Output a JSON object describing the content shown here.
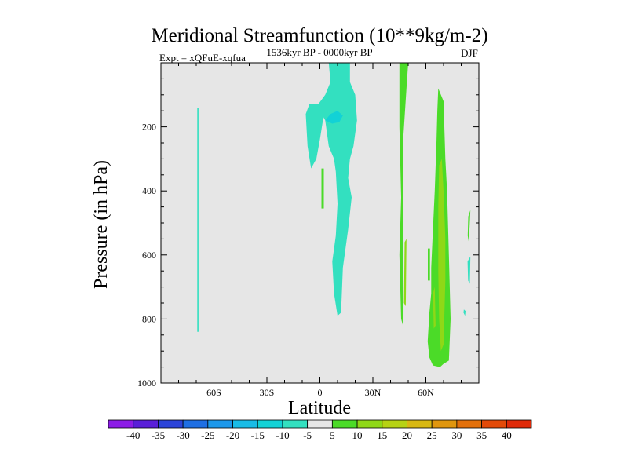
{
  "chart_data": {
    "type": "heatmap",
    "title": "Meridional Streamfunction (10**9kg/m-2)",
    "subtitle_left": "Expt = xQFuE-xqfua",
    "subtitle_center": "1536kyr BP - 0000kyr BP",
    "subtitle_right": "DJF",
    "xlabel": "Latitude",
    "ylabel": "Pressure (in hPa)",
    "xlim": [
      -90,
      90
    ],
    "ylim": [
      1000,
      0
    ],
    "x_ticks": [
      {
        "value": -60,
        "label": "60S"
      },
      {
        "value": -30,
        "label": "30S"
      },
      {
        "value": 0,
        "label": "0"
      },
      {
        "value": 30,
        "label": "30N"
      },
      {
        "value": 60,
        "label": "60N"
      }
    ],
    "y_ticks": [
      {
        "value": 200,
        "label": "200"
      },
      {
        "value": 400,
        "label": "400"
      },
      {
        "value": 600,
        "label": "600"
      },
      {
        "value": 800,
        "label": "800"
      },
      {
        "value": 1000,
        "label": "1000"
      }
    ],
    "background_color": "#e6e6e6",
    "colorbar": {
      "levels": [
        "-40",
        "-35",
        "-30",
        "-25",
        "-20",
        "-15",
        "-10",
        "-5",
        "5",
        "10",
        "15",
        "20",
        "25",
        "30",
        "35",
        "40"
      ],
      "colors": [
        "#8c1ce6",
        "#5a1fd8",
        "#2c44d9",
        "#1f6fe3",
        "#1d98ea",
        "#19bce6",
        "#12d2d6",
        "#33e0c0",
        "#e6e6e6",
        "#4bdb28",
        "#8fd817",
        "#b6d214",
        "#d8b812",
        "#e0960e",
        "#e3700a",
        "#e34a08",
        "#e02a08"
      ]
    },
    "regions": [
      {
        "level": "-5",
        "color": "#33e0c0",
        "points": [
          [
            -69.4,
            140
          ],
          [
            -68.7,
            140
          ],
          [
            -68.7,
            840
          ],
          [
            -69.4,
            840
          ]
        ]
      },
      {
        "level": "-5",
        "color": "#33e0c0",
        "points": [
          [
            5,
            0
          ],
          [
            17,
            0
          ],
          [
            17,
            60
          ],
          [
            20,
            100
          ],
          [
            21,
            180
          ],
          [
            19,
            260
          ],
          [
            17,
            300
          ],
          [
            16,
            360
          ],
          [
            18,
            420
          ],
          [
            16,
            520
          ],
          [
            13,
            640
          ],
          [
            12,
            780
          ],
          [
            10,
            790
          ],
          [
            8,
            720
          ],
          [
            7,
            620
          ],
          [
            9,
            540
          ],
          [
            10,
            440
          ],
          [
            9,
            340
          ],
          [
            8,
            300
          ],
          [
            5,
            260
          ],
          [
            3,
            180
          ],
          [
            2,
            170
          ],
          [
            0,
            240
          ],
          [
            -2,
            300
          ],
          [
            -5,
            330
          ],
          [
            -7,
            260
          ],
          [
            -8,
            160
          ],
          [
            -6,
            130
          ],
          [
            -1,
            130
          ],
          [
            3,
            100
          ],
          [
            6,
            60
          ]
        ]
      },
      {
        "level": "-10",
        "color": "#12d2d6",
        "points": [
          [
            3,
            180
          ],
          [
            6,
            160
          ],
          [
            10,
            150
          ],
          [
            13,
            165
          ],
          [
            11,
            185
          ],
          [
            7,
            190
          ]
        ]
      },
      {
        "level": "-5",
        "color": "#33e0c0",
        "points": [
          [
            83.6,
            620
          ],
          [
            85.2,
            605
          ],
          [
            84.9,
            690
          ],
          [
            83.9,
            680
          ]
        ]
      },
      {
        "level": "-5",
        "color": "#33e0c0",
        "points": [
          [
            81.5,
            770
          ],
          [
            82.5,
            775
          ],
          [
            82.2,
            790
          ],
          [
            81.3,
            780
          ]
        ]
      },
      {
        "level": "5",
        "color": "#4bdb28",
        "points": [
          [
            0.9,
            330
          ],
          [
            2.2,
            330
          ],
          [
            2.2,
            455
          ],
          [
            0.9,
            455
          ]
        ]
      },
      {
        "level": "5",
        "color": "#4bdb28",
        "points": [
          [
            45,
            0
          ],
          [
            50,
            0
          ],
          [
            49,
            80
          ],
          [
            47,
            250
          ],
          [
            47,
            420
          ],
          [
            47,
            600
          ],
          [
            47,
            820
          ],
          [
            46,
            800
          ],
          [
            45,
            600
          ],
          [
            46,
            420
          ],
          [
            45,
            200
          ],
          [
            45,
            80
          ]
        ]
      },
      {
        "level": "5",
        "color": "#4bdb28",
        "points": [
          [
            67,
            80
          ],
          [
            70,
            120
          ],
          [
            71,
            300
          ],
          [
            72,
            400
          ],
          [
            73,
            600
          ],
          [
            74,
            800
          ],
          [
            73,
            930
          ],
          [
            70,
            940
          ],
          [
            68,
            950
          ],
          [
            64,
            945
          ],
          [
            62,
            920
          ],
          [
            61,
            870
          ],
          [
            62,
            780
          ],
          [
            63,
            720
          ],
          [
            63,
            640
          ],
          [
            64,
            520
          ],
          [
            65,
            400
          ],
          [
            66,
            250
          ],
          [
            66.5,
            150
          ]
        ]
      },
      {
        "level": "5",
        "color": "#4bdb28",
        "points": [
          [
            61.1,
            580
          ],
          [
            62.3,
            580
          ],
          [
            62.3,
            680
          ],
          [
            61.1,
            680
          ]
        ]
      },
      {
        "level": "5",
        "color": "#4bdb28",
        "points": [
          [
            84,
            480
          ],
          [
            85.2,
            460
          ],
          [
            84.3,
            560
          ],
          [
            83.7,
            540
          ]
        ]
      },
      {
        "level": "10",
        "color": "#8fd817",
        "points": [
          [
            67.5,
            320
          ],
          [
            69,
            300
          ],
          [
            70,
            400
          ],
          [
            71,
            550
          ],
          [
            71,
            680
          ],
          [
            70,
            880
          ],
          [
            68.5,
            900
          ],
          [
            67.5,
            800
          ],
          [
            67,
            650
          ],
          [
            67,
            450
          ]
        ]
      },
      {
        "level": "10",
        "color": "#8fd817",
        "points": [
          [
            48,
            560
          ],
          [
            49,
            550
          ],
          [
            48.6,
            760
          ],
          [
            47.6,
            750
          ]
        ]
      },
      {
        "level": "10",
        "color": "#8fd817",
        "points": [
          [
            64,
            720
          ],
          [
            65,
            700
          ],
          [
            65.5,
            820
          ],
          [
            64.5,
            830
          ]
        ]
      }
    ]
  }
}
